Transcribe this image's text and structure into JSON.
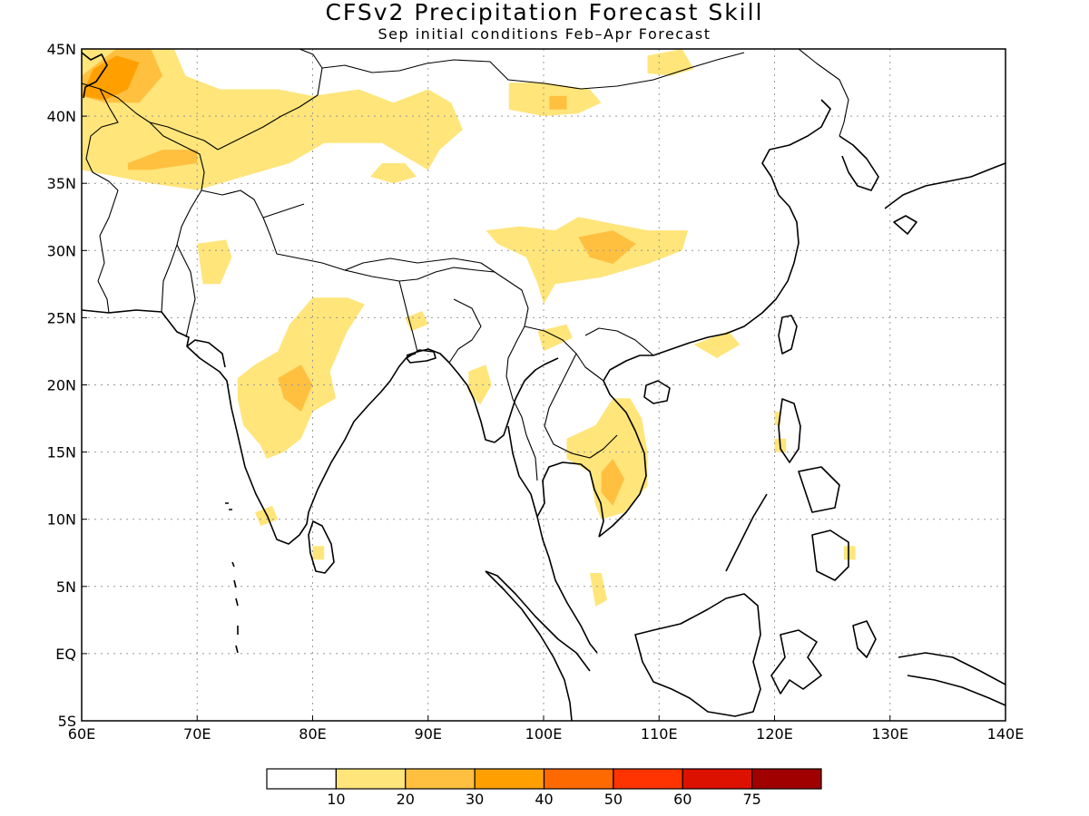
{
  "title": "CFSv2 Precipitation Forecast Skill",
  "subtitle": "Sep initial conditions  Feb–Apr Forecast",
  "map": {
    "lon_range": [
      60,
      140
    ],
    "lat_range": [
      -5,
      45
    ],
    "lon_ticks": [
      {
        "value": 60,
        "label": "60E"
      },
      {
        "value": 70,
        "label": "70E"
      },
      {
        "value": 80,
        "label": "80E"
      },
      {
        "value": 90,
        "label": "90E"
      },
      {
        "value": 100,
        "label": "100E"
      },
      {
        "value": 110,
        "label": "110E"
      },
      {
        "value": 120,
        "label": "120E"
      },
      {
        "value": 130,
        "label": "130E"
      },
      {
        "value": 140,
        "label": "140E"
      }
    ],
    "lat_ticks": [
      {
        "value": 45,
        "label": "45N"
      },
      {
        "value": 40,
        "label": "40N"
      },
      {
        "value": 35,
        "label": "35N"
      },
      {
        "value": 30,
        "label": "30N"
      },
      {
        "value": 25,
        "label": "25N"
      },
      {
        "value": 20,
        "label": "20N"
      },
      {
        "value": 15,
        "label": "15N"
      },
      {
        "value": 10,
        "label": "10N"
      },
      {
        "value": 5,
        "label": "5N"
      },
      {
        "value": 0,
        "label": "EQ"
      },
      {
        "value": -5,
        "label": "5S"
      }
    ],
    "grid": true
  },
  "colorbar": {
    "colors": [
      "#ffffff",
      "#ffe57a",
      "#ffc040",
      "#ffa000",
      "#ff6a00",
      "#ff3400",
      "#dd1100",
      "#a00000"
    ],
    "labels": [
      "10",
      "20",
      "30",
      "40",
      "50",
      "60",
      "75"
    ]
  },
  "skill_regions": [
    {
      "level": 1,
      "poly": [
        [
          60,
          45
        ],
        [
          68,
          45
        ],
        [
          69,
          43
        ],
        [
          72,
          42
        ],
        [
          77,
          42
        ],
        [
          80,
          41.5
        ],
        [
          84,
          42
        ],
        [
          87,
          41
        ],
        [
          90,
          42
        ],
        [
          92,
          41
        ],
        [
          93,
          39
        ],
        [
          91,
          37.5
        ],
        [
          90,
          36
        ],
        [
          88,
          37
        ],
        [
          86,
          38
        ],
        [
          84,
          38
        ],
        [
          81,
          38
        ],
        [
          78,
          36.5
        ],
        [
          74,
          35.5
        ],
        [
          72,
          35
        ],
        [
          70,
          34.5
        ],
        [
          66,
          35
        ],
        [
          63,
          35.5
        ],
        [
          60,
          36
        ]
      ]
    },
    {
      "level": 1,
      "poly": [
        [
          62,
          37.5
        ],
        [
          64,
          37
        ],
        [
          66,
          36.5
        ],
        [
          70,
          37
        ],
        [
          71,
          38.2
        ],
        [
          69,
          39
        ],
        [
          66,
          38.8
        ],
        [
          63,
          38.5
        ]
      ]
    },
    {
      "level": 1,
      "poly": [
        [
          85,
          35.5
        ],
        [
          87,
          35
        ],
        [
          89,
          35.5
        ],
        [
          88,
          36.5
        ],
        [
          86,
          36.5
        ]
      ]
    },
    {
      "level": 1,
      "poly": [
        [
          97,
          42.5
        ],
        [
          100,
          42.5
        ],
        [
          104,
          42
        ],
        [
          105,
          41
        ],
        [
          103,
          40.2
        ],
        [
          100,
          40
        ],
        [
          97,
          40.5
        ]
      ]
    },
    {
      "level": 1,
      "poly": [
        [
          109,
          44.5
        ],
        [
          112,
          45
        ],
        [
          113,
          43.5
        ],
        [
          111,
          43
        ],
        [
          109,
          43.2
        ]
      ]
    },
    {
      "level": 1,
      "poly": [
        [
          95,
          31.5
        ],
        [
          98,
          31.8
        ],
        [
          101,
          31.5
        ],
        [
          103,
          32.5
        ],
        [
          106,
          32
        ],
        [
          109,
          31.5
        ],
        [
          112.5,
          31.5
        ],
        [
          112,
          30
        ],
        [
          109,
          29
        ],
        [
          105,
          28
        ],
        [
          101,
          27.5
        ],
        [
          100,
          26
        ],
        [
          99.5,
          27.5
        ],
        [
          98.5,
          29.5
        ],
        [
          96,
          30.5
        ]
      ]
    },
    {
      "level": 1,
      "poly": [
        [
          70,
          30.5
        ],
        [
          72.5,
          30.8
        ],
        [
          73,
          29.5
        ],
        [
          72,
          27.5
        ],
        [
          70.5,
          27.5
        ]
      ]
    },
    {
      "level": 1,
      "poly": [
        [
          78,
          24.5
        ],
        [
          80,
          26.5
        ],
        [
          83,
          26.5
        ],
        [
          84.5,
          26
        ],
        [
          83,
          24
        ],
        [
          81.5,
          21
        ],
        [
          82,
          19
        ],
        [
          80,
          18
        ],
        [
          79,
          16
        ],
        [
          77.5,
          15
        ],
        [
          76,
          14.5
        ],
        [
          75.5,
          15.5
        ],
        [
          74,
          17
        ],
        [
          73.5,
          19
        ],
        [
          73.5,
          20.5
        ],
        [
          75,
          21.5
        ],
        [
          77,
          22.5
        ]
      ]
    },
    {
      "level": 1,
      "poly": [
        [
          88,
          25
        ],
        [
          89.5,
          25.5
        ],
        [
          90,
          24.5
        ],
        [
          88.5,
          24
        ]
      ]
    },
    {
      "level": 1,
      "poly": [
        [
          93.5,
          21
        ],
        [
          95,
          21.5
        ],
        [
          95.5,
          20
        ],
        [
          94.5,
          18.5
        ],
        [
          93.5,
          19.5
        ]
      ]
    },
    {
      "level": 1,
      "poly": [
        [
          99.5,
          24
        ],
        [
          102,
          24.5
        ],
        [
          102.5,
          23.5
        ],
        [
          100,
          22.5
        ]
      ]
    },
    {
      "level": 1,
      "poly": [
        [
          102,
          16
        ],
        [
          104.5,
          17
        ],
        [
          106,
          19
        ],
        [
          107.5,
          19
        ],
        [
          108.5,
          17.5
        ],
        [
          109,
          15
        ],
        [
          109,
          12.5
        ],
        [
          107,
          10.5
        ],
        [
          105,
          10
        ],
        [
          104.5,
          11
        ],
        [
          104,
          13.5
        ],
        [
          102,
          14.5
        ]
      ]
    },
    {
      "level": 1,
      "poly": [
        [
          75,
          10.5
        ],
        [
          76.5,
          11
        ],
        [
          77,
          10
        ],
        [
          75.5,
          9.5
        ]
      ]
    },
    {
      "level": 1,
      "poly": [
        [
          80,
          8
        ],
        [
          81,
          8
        ],
        [
          81,
          7
        ],
        [
          80,
          7
        ]
      ]
    },
    {
      "level": 1,
      "poly": [
        [
          104,
          6
        ],
        [
          105,
          6
        ],
        [
          105.5,
          4
        ],
        [
          104.5,
          3.5
        ]
      ]
    },
    {
      "level": 1,
      "poly": [
        [
          113,
          23
        ],
        [
          116,
          24
        ],
        [
          117,
          23
        ],
        [
          115,
          22
        ]
      ]
    },
    {
      "level": 1,
      "poly": [
        [
          120,
          18
        ],
        [
          120.5,
          18
        ],
        [
          120.5,
          17
        ],
        [
          120,
          17
        ]
      ]
    },
    {
      "level": 1,
      "poly": [
        [
          126,
          8
        ],
        [
          127,
          8
        ],
        [
          127,
          7
        ],
        [
          126,
          7
        ]
      ]
    },
    {
      "level": 1,
      "poly": [
        [
          120,
          16
        ],
        [
          121,
          16
        ],
        [
          121,
          15
        ],
        [
          120,
          15
        ]
      ]
    },
    {
      "level": 2,
      "poly": [
        [
          60,
          43
        ],
        [
          63,
          45
        ],
        [
          66,
          45
        ],
        [
          67,
          43
        ],
        [
          65,
          41
        ],
        [
          62,
          41
        ],
        [
          60,
          41.5
        ]
      ]
    },
    {
      "level": 2,
      "poly": [
        [
          64,
          36.5
        ],
        [
          67,
          37.5
        ],
        [
          70,
          37.5
        ],
        [
          70,
          36.5
        ],
        [
          66,
          36
        ],
        [
          64,
          36
        ]
      ]
    },
    {
      "level": 2,
      "poly": [
        [
          103,
          31
        ],
        [
          106,
          31.5
        ],
        [
          108,
          30.5
        ],
        [
          106,
          29
        ],
        [
          104,
          29.5
        ]
      ]
    },
    {
      "level": 2,
      "poly": [
        [
          77,
          20.5
        ],
        [
          79,
          21.5
        ],
        [
          80,
          20
        ],
        [
          79,
          18
        ],
        [
          77.5,
          19
        ]
      ]
    },
    {
      "level": 2,
      "poly": [
        [
          105,
          13.5
        ],
        [
          106,
          14.5
        ],
        [
          107,
          13
        ],
        [
          106,
          11
        ],
        [
          105,
          12
        ]
      ]
    },
    {
      "level": 2,
      "poly": [
        [
          100.5,
          41.5
        ],
        [
          102,
          41.5
        ],
        [
          102,
          40.5
        ],
        [
          100.5,
          40.5
        ]
      ]
    },
    {
      "level": 3,
      "poly": [
        [
          60,
          41.5
        ],
        [
          61,
          43.5
        ],
        [
          63,
          44.5
        ],
        [
          65,
          44
        ],
        [
          64,
          42
        ],
        [
          62,
          41.2
        ]
      ]
    }
  ]
}
